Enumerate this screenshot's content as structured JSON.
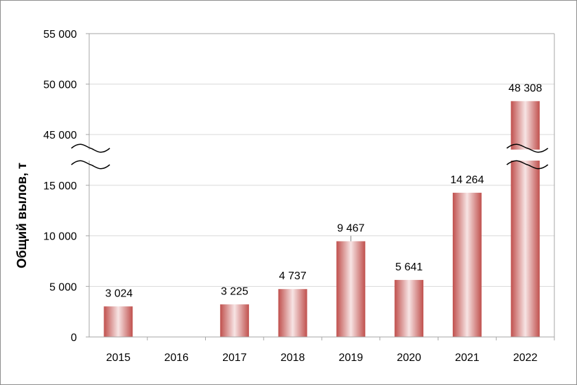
{
  "chart_data": {
    "type": "bar",
    "categories": [
      "2015",
      "2016",
      "2017",
      "2018",
      "2019",
      "2020",
      "2021",
      "2022"
    ],
    "values": [
      3024,
      null,
      3225,
      4737,
      9467,
      5641,
      14264,
      48308
    ],
    "data_labels": [
      "3 024",
      "",
      "3 225",
      "4 737",
      "9 467",
      "5 641",
      "14 264",
      "48 308"
    ],
    "title": "",
    "xlabel": "",
    "ylabel": "Общий вылов, т",
    "ylim": [
      0,
      55000
    ],
    "axis_break": {
      "from": 15000,
      "to": 45000
    },
    "y_ticks": [
      {
        "value": 0,
        "label": "0"
      },
      {
        "value": 5000,
        "label": "5 000"
      },
      {
        "value": 10000,
        "label": "10 000"
      },
      {
        "value": 15000,
        "label": "15 000"
      },
      {
        "value": 45000,
        "label": "45 000"
      },
      {
        "value": 50000,
        "label": "50 000"
      },
      {
        "value": 55000,
        "label": "55 000"
      }
    ],
    "grid": true,
    "legend": "none",
    "colors": {
      "bar_edge": "#c0504d",
      "bar_center": "#f7e4e4",
      "grid": "#d9d9d9",
      "axis": "#a6a6a6"
    }
  }
}
